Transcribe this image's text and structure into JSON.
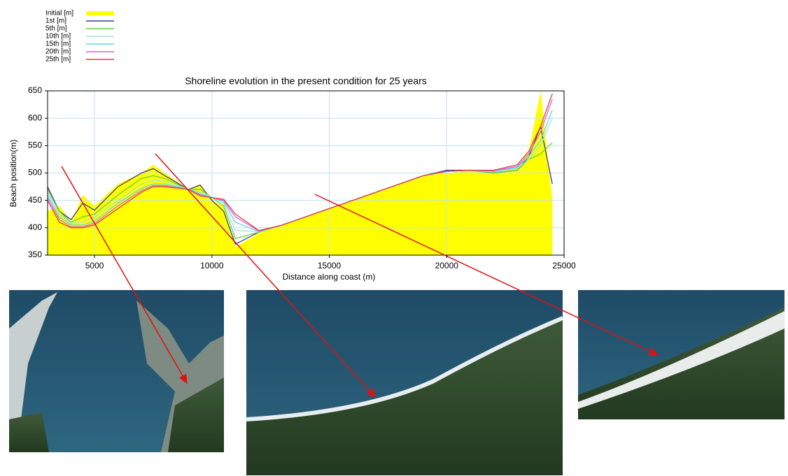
{
  "chart_data": {
    "type": "line",
    "title": "Shoreline evolution in the present condition for 25 years",
    "x_label": "Distance along coast (m)",
    "y_label": "Beach position(m)",
    "x": [
      3000,
      3500,
      4000,
      4500,
      5000,
      6000,
      7000,
      7500,
      8000,
      9000,
      9500,
      10000,
      10500,
      11000,
      12000,
      13000,
      15000,
      17000,
      19000,
      20000,
      21000,
      22000,
      23000,
      23500,
      24000,
      24500
    ],
    "series": [
      {
        "name": "Initial [m]",
        "color": "#ffff00",
        "fill": true,
        "values": [
          430,
          440,
          410,
          460,
          440,
          480,
          500,
          515,
          500,
          470,
          480,
          450,
          440,
          365,
          390,
          405,
          435,
          465,
          495,
          500,
          505,
          505,
          510,
          540,
          650,
          450
        ]
      },
      {
        "name": "1st [m]",
        "color": "#3b3b98",
        "values": [
          475,
          430,
          415,
          445,
          432,
          475,
          500,
          508,
          495,
          470,
          478,
          450,
          430,
          370,
          392,
          405,
          435,
          465,
          495,
          505,
          505,
          500,
          505,
          530,
          585,
          480
        ]
      },
      {
        "name": "5th [m]",
        "color": "#5ecf3a",
        "values": [
          470,
          430,
          410,
          420,
          425,
          460,
          490,
          495,
          490,
          470,
          470,
          455,
          440,
          380,
          392,
          405,
          435,
          465,
          495,
          503,
          505,
          500,
          505,
          525,
          535,
          555
        ]
      },
      {
        "name": "10th [m]",
        "color": "#a8dfe0",
        "values": [
          465,
          425,
          408,
          410,
          420,
          450,
          480,
          487,
          485,
          470,
          465,
          455,
          445,
          395,
          393,
          405,
          435,
          465,
          495,
          503,
          505,
          502,
          508,
          525,
          550,
          600
        ]
      },
      {
        "name": "15th [m]",
        "color": "#59dce6",
        "values": [
          460,
          420,
          405,
          405,
          412,
          445,
          472,
          480,
          480,
          470,
          462,
          455,
          448,
          410,
          393,
          405,
          435,
          465,
          495,
          503,
          505,
          503,
          510,
          530,
          560,
          615
        ]
      },
      {
        "name": "20th [m]",
        "color": "#e05ce0",
        "values": [
          455,
          415,
          402,
          402,
          408,
          440,
          468,
          477,
          477,
          470,
          460,
          455,
          450,
          420,
          394,
          405,
          435,
          465,
          495,
          503,
          505,
          504,
          512,
          535,
          575,
          635
        ]
      },
      {
        "name": "25th [m]",
        "color": "#e04040",
        "values": [
          450,
          410,
          400,
          400,
          405,
          435,
          465,
          475,
          475,
          470,
          458,
          455,
          452,
          425,
          395,
          405,
          435,
          465,
          495,
          503,
          505,
          505,
          515,
          540,
          585,
          645
        ]
      }
    ],
    "xlim": [
      3000,
      25000
    ],
    "xticks": [
      5000,
      10000,
      15000,
      20000,
      25000
    ],
    "ylim": [
      350,
      650
    ],
    "yticks": [
      350,
      400,
      450,
      500,
      550,
      600,
      650
    ],
    "grid": true
  }
}
